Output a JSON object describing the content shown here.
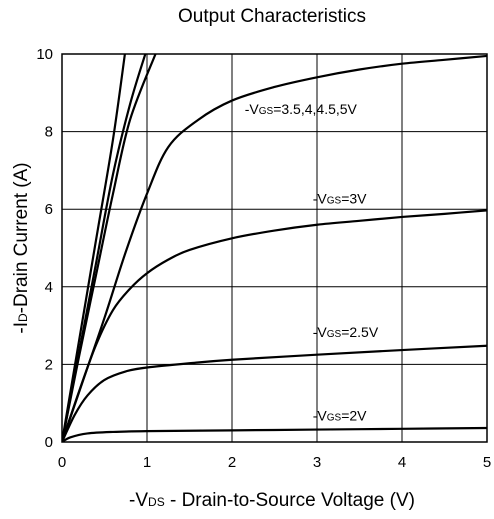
{
  "chart_data": {
    "type": "line",
    "title": "Output Characteristics",
    "xlabel": "-VDS - Drain-to-Source Voltage (V)",
    "ylabel": "-ID-Drain Current (A)",
    "xlim": [
      0,
      5
    ],
    "ylim": [
      0,
      10
    ],
    "x_ticks": [
      0,
      1,
      2,
      3,
      4,
      5
    ],
    "y_ticks": [
      0,
      2,
      4,
      6,
      8,
      10
    ],
    "grid": true,
    "legend": "none",
    "series": [
      {
        "points": [
          [
            0,
            0
          ],
          [
            0.2,
            2.6
          ],
          [
            0.4,
            5.2
          ],
          [
            0.6,
            7.8
          ],
          [
            0.74,
            10
          ]
        ]
      },
      {
        "points": [
          [
            0,
            0
          ],
          [
            0.2,
            2.3
          ],
          [
            0.4,
            4.6
          ],
          [
            0.6,
            6.9
          ],
          [
            0.8,
            8.7
          ],
          [
            0.98,
            10
          ]
        ]
      },
      {
        "points": [
          [
            0,
            0
          ],
          [
            0.2,
            2.2
          ],
          [
            0.4,
            4.3
          ],
          [
            0.6,
            6.4
          ],
          [
            0.8,
            8.3
          ],
          [
            1.1,
            10
          ]
        ]
      },
      {
        "points": [
          [
            0,
            0
          ],
          [
            0.25,
            1.6
          ],
          [
            0.5,
            3.2
          ],
          [
            0.75,
            4.9
          ],
          [
            1.0,
            6.4
          ],
          [
            1.25,
            7.6
          ],
          [
            1.6,
            8.3
          ],
          [
            2.0,
            8.8
          ],
          [
            2.5,
            9.15
          ],
          [
            3.0,
            9.4
          ],
          [
            3.5,
            9.6
          ],
          [
            4.0,
            9.75
          ],
          [
            4.5,
            9.85
          ],
          [
            5.0,
            9.95
          ]
        ]
      },
      {
        "points": [
          [
            0,
            0
          ],
          [
            0.2,
            1.3
          ],
          [
            0.4,
            2.5
          ],
          [
            0.6,
            3.4
          ],
          [
            0.8,
            3.95
          ],
          [
            1.0,
            4.35
          ],
          [
            1.25,
            4.7
          ],
          [
            1.5,
            4.95
          ],
          [
            2.0,
            5.25
          ],
          [
            2.5,
            5.45
          ],
          [
            3.0,
            5.6
          ],
          [
            3.5,
            5.7
          ],
          [
            4.0,
            5.8
          ],
          [
            4.5,
            5.88
          ],
          [
            5.0,
            5.97
          ]
        ]
      },
      {
        "points": [
          [
            0,
            0
          ],
          [
            0.15,
            0.7
          ],
          [
            0.3,
            1.2
          ],
          [
            0.5,
            1.6
          ],
          [
            0.75,
            1.82
          ],
          [
            1.0,
            1.92
          ],
          [
            1.5,
            2.03
          ],
          [
            2.0,
            2.12
          ],
          [
            3.0,
            2.25
          ],
          [
            4.0,
            2.37
          ],
          [
            5.0,
            2.48
          ]
        ]
      },
      {
        "points": [
          [
            0,
            0
          ],
          [
            0.1,
            0.12
          ],
          [
            0.3,
            0.22
          ],
          [
            0.6,
            0.26
          ],
          [
            1.0,
            0.28
          ],
          [
            2.0,
            0.3
          ],
          [
            3.0,
            0.32
          ],
          [
            4.0,
            0.34
          ],
          [
            5.0,
            0.36
          ]
        ]
      }
    ],
    "annotations": [
      {
        "text": "-VGS=3.5,4,4.5,5V",
        "prefix": "-V",
        "sub": "GS",
        "suffix": "=3.5,4,4.5,5V",
        "x": 2.15,
        "y": 8.45
      },
      {
        "text": "-VGS=3V",
        "prefix": "-V",
        "sub": "GS",
        "suffix": "=3V",
        "x": 2.95,
        "y": 6.15
      },
      {
        "text": "-VGS=2.5V",
        "prefix": "-V",
        "sub": "GS",
        "suffix": "=2.5V",
        "x": 2.95,
        "y": 2.7
      },
      {
        "text": "-VGS=2V",
        "prefix": "-V",
        "sub": "GS",
        "suffix": "=2V",
        "x": 2.95,
        "y": 0.55
      }
    ]
  }
}
